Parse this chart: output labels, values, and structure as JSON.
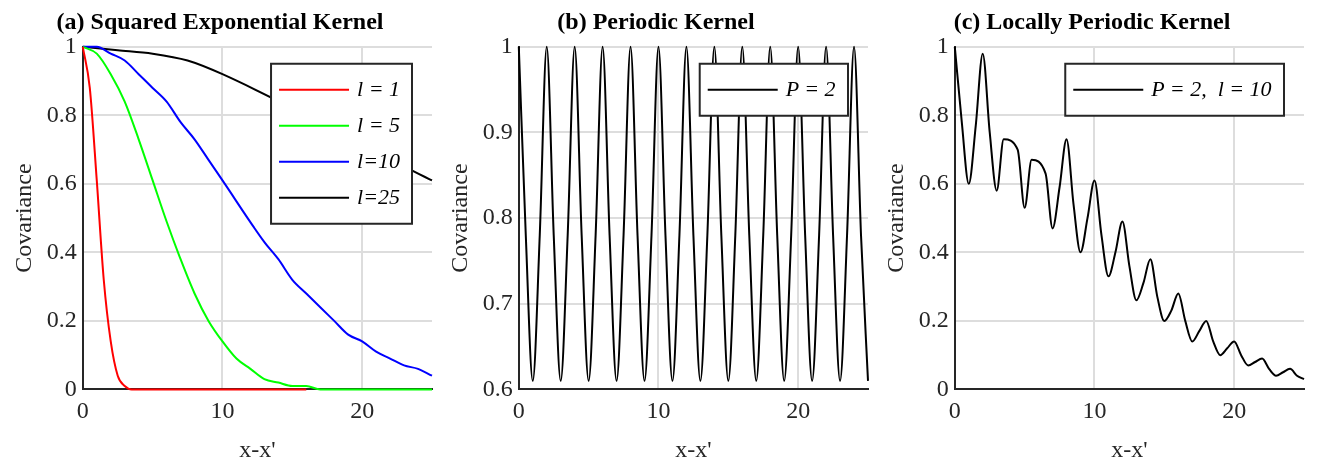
{
  "chart_data": [
    {
      "type": "line",
      "title": "(a) Squared Exponential Kernel",
      "xlabel": "x-x'",
      "ylabel": "Covariance",
      "xlim": [
        0,
        25
      ],
      "xticks": [
        0,
        10,
        20
      ],
      "ylim": [
        0,
        1
      ],
      "yticks": [
        0,
        0.2,
        0.4,
        0.6,
        0.8,
        1
      ],
      "grid": true,
      "legend": "top right",
      "series": [
        {
          "name": "l = 1",
          "color": "#ff0000",
          "x": [
            0,
            0.5,
            1,
            1.5,
            2,
            2.5,
            3,
            3.5,
            4,
            16
          ],
          "values": [
            1,
            0.88,
            0.61,
            0.32,
            0.14,
            0.04,
            0.01,
            0,
            0,
            0
          ]
        },
        {
          "name": "l = 5",
          "color": "#00ff00",
          "x": [
            0,
            1,
            2,
            3,
            4,
            5,
            6,
            7,
            8,
            9,
            10,
            11,
            12,
            13,
            14,
            15,
            16,
            17,
            18,
            25
          ],
          "values": [
            1,
            0.98,
            0.92,
            0.84,
            0.73,
            0.61,
            0.49,
            0.38,
            0.28,
            0.2,
            0.14,
            0.09,
            0.06,
            0.03,
            0.02,
            0.01,
            0.01,
            0,
            0,
            0
          ]
        },
        {
          "name": "l=10",
          "color": "#0000ff",
          "x": [
            0,
            1,
            2,
            3,
            4,
            5,
            6,
            7,
            8,
            9,
            10,
            11,
            12,
            13,
            14,
            15,
            16,
            17,
            18,
            19,
            20,
            21,
            22,
            23,
            24,
            25
          ],
          "values": [
            1,
            1,
            0.98,
            0.96,
            0.92,
            0.88,
            0.84,
            0.78,
            0.73,
            0.67,
            0.61,
            null,
            null,
            0.43,
            0.38,
            0.32,
            0.28,
            0.24,
            0.2,
            0.16,
            0.14,
            0.11,
            0.09,
            0.07,
            0.06,
            0.04
          ]
        },
        {
          "name": "l=25",
          "color": "#000000",
          "x": [
            0,
            2.5,
            5,
            7.5,
            10,
            12.5,
            15,
            17.5,
            20,
            22.5,
            24.5,
            25
          ],
          "values": [
            1,
            0.99,
            0.98,
            0.96,
            0.92,
            null,
            null,
            null,
            null,
            null,
            0.62,
            0.61
          ]
        }
      ]
    },
    {
      "type": "line",
      "title": "(b) Periodic Kernel",
      "xlabel": "x-x'",
      "ylabel": "Covariance",
      "xlim": [
        0,
        25
      ],
      "xticks": [
        0,
        10,
        20
      ],
      "ylim": [
        0.6,
        1
      ],
      "yticks": [
        0.6,
        0.7,
        0.8,
        0.9,
        1
      ],
      "grid": true,
      "legend": "top right",
      "series": [
        {
          "name": "P = 2",
          "color": "#000000",
          "x": [
            0,
            0.5,
            1,
            1.5,
            2,
            2.5,
            3,
            3.5,
            4,
            4.5,
            5,
            5.5,
            6,
            6.5,
            7,
            7.5,
            8,
            8.5,
            9,
            9.5,
            10,
            10.5,
            11,
            11.5,
            12,
            12.5,
            13,
            13.5,
            14,
            14.5,
            15,
            15.5,
            16,
            16.5,
            17,
            17.5,
            18,
            18.5,
            19,
            19.5,
            20,
            20.5,
            21,
            21.5,
            22,
            22.5,
            23,
            23.5,
            24,
            24.5,
            25
          ],
          "values": [
            1,
            0.78,
            0.61,
            0.78,
            1,
            0.78,
            0.61,
            0.78,
            1,
            0.78,
            0.61,
            0.78,
            1,
            0.78,
            0.61,
            0.78,
            1,
            0.78,
            0.61,
            0.78,
            1,
            0.78,
            0.61,
            0.78,
            1,
            0.78,
            0.61,
            0.78,
            1,
            0.78,
            0.61,
            0.78,
            1,
            0.78,
            0.61,
            0.78,
            1,
            0.78,
            0.61,
            0.78,
            1,
            0.78,
            0.61,
            0.78,
            1,
            0.78,
            0.61,
            0.78,
            1,
            0.78,
            0.61
          ]
        }
      ]
    },
    {
      "type": "line",
      "title": "(c) Locally Periodic Kernel",
      "xlabel": "x-x'",
      "ylabel": "Covariance",
      "xlim": [
        0,
        25
      ],
      "xticks": [
        0,
        10,
        20
      ],
      "ylim": [
        0,
        1
      ],
      "yticks": [
        0,
        0.2,
        0.4,
        0.6,
        0.8,
        1
      ],
      "grid": true,
      "legend": "top right",
      "series": [
        {
          "name": "P = 2,  l = 10",
          "color": "#000000",
          "x": [
            0,
            0.5,
            1,
            1.5,
            2,
            2.5,
            3,
            3.5,
            4,
            4.5,
            5,
            5.5,
            6,
            6.5,
            7,
            7.5,
            8,
            8.5,
            9,
            9.5,
            10,
            10.5,
            11,
            11.5,
            12,
            12.5,
            13,
            13.5,
            14,
            14.5,
            15,
            15.5,
            16,
            16.5,
            17,
            17.5,
            18,
            18.5,
            19,
            19.5,
            20,
            20.5,
            21,
            21.5,
            22,
            22.5,
            23,
            23.5,
            24,
            24.5,
            25
          ],
          "values": [
            1,
            0.78,
            0.6,
            0.77,
            0.98,
            0.75,
            0.58,
            0.73,
            null,
            0.7,
            0.53,
            0.67,
            null,
            0.63,
            0.47,
            0.59,
            0.73,
            0.54,
            0.4,
            0.5,
            0.61,
            0.45,
            0.33,
            0.4,
            0.49,
            0.36,
            0.26,
            0.31,
            0.38,
            0.27,
            0.2,
            0.23,
            0.28,
            0.2,
            0.14,
            0.17,
            0.2,
            0.14,
            0.1,
            0.12,
            0.14,
            0.1,
            0.07,
            0.08,
            0.09,
            0.06,
            0.04,
            0.05,
            0.06,
            0.04,
            0.03
          ]
        }
      ]
    }
  ]
}
